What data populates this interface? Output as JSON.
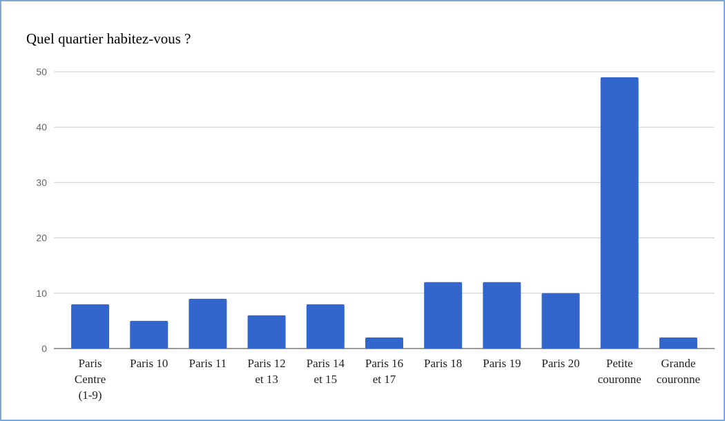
{
  "chart_data": {
    "type": "bar",
    "title": "Quel quartier habitez-vous ?",
    "xlabel": "",
    "ylabel": "",
    "categories": [
      "Paris Centre (1-9)",
      "Paris 10",
      "Paris 11",
      "Paris 12 et 13",
      "Paris 14 et 15",
      "Paris 16 et 17",
      "Paris 18",
      "Paris 19",
      "Paris 20",
      "Petite couronne",
      "Grande couronne"
    ],
    "category_lines": [
      [
        "Paris",
        "Centre",
        "(1-9)"
      ],
      [
        "Paris 10"
      ],
      [
        "Paris 11"
      ],
      [
        "Paris 12",
        "et 13"
      ],
      [
        "Paris 14",
        "et 15"
      ],
      [
        "Paris 16",
        "et 17"
      ],
      [
        "Paris 18"
      ],
      [
        "Paris 19"
      ],
      [
        "Paris 20"
      ],
      [
        "Petite",
        "couronne"
      ],
      [
        "Grande",
        "couronne"
      ]
    ],
    "values": [
      8,
      5,
      9,
      6,
      8,
      2,
      12,
      12,
      10,
      49,
      2
    ],
    "ylim": [
      0,
      50
    ],
    "yticks": [
      0,
      10,
      20,
      30,
      40,
      50
    ],
    "grid": true,
    "legend": "none",
    "bar_color": "#3366cc"
  }
}
